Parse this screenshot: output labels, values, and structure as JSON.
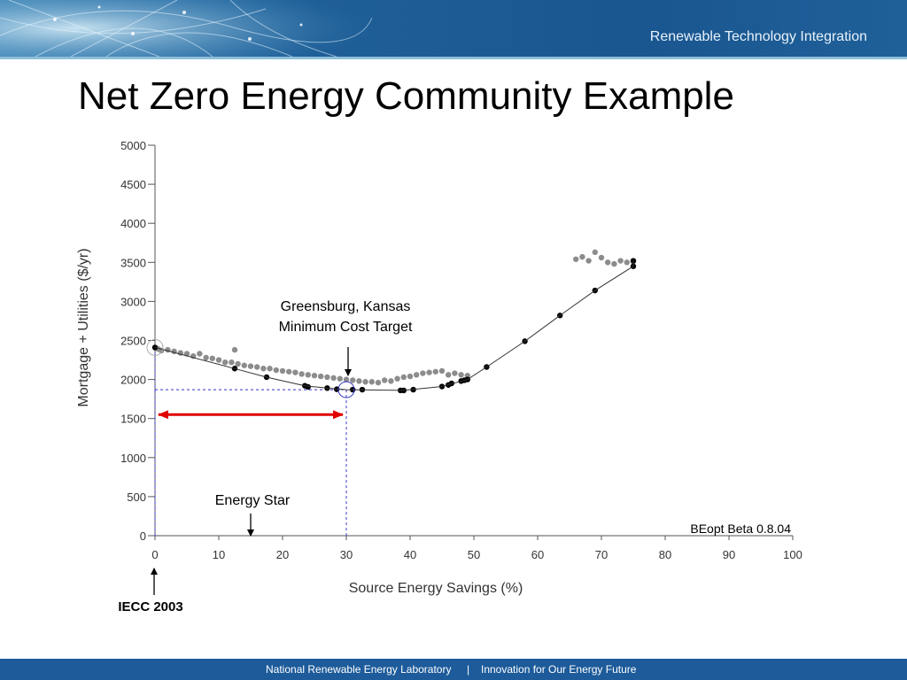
{
  "header": {
    "subtitle": "Renewable Technology Integration"
  },
  "slide": {
    "title": "Net Zero Energy Community Example"
  },
  "footer": {
    "org": "National Renewable Energy Laboratory",
    "separator": "|",
    "tagline": "Innovation for Our Energy Future"
  },
  "colors": {
    "banner": "#1a5690",
    "footer": "#1d5b9a",
    "series_gray": "#8c8c8c",
    "series_black": "#000000",
    "arrow": "#e00000",
    "guide": "#3333cc"
  },
  "chart_data": {
    "type": "scatter",
    "title": "",
    "xlabel": "Source Energy Savings (%)",
    "ylabel": "Mortgage + Utilities ($/yr)",
    "xlim": [
      0,
      100
    ],
    "ylim": [
      0,
      5000
    ],
    "x_ticks": [
      0,
      10,
      20,
      30,
      40,
      50,
      60,
      70,
      80,
      90,
      100
    ],
    "y_ticks": [
      0,
      500,
      1000,
      1500,
      2000,
      2500,
      3000,
      3500,
      4000,
      4500,
      5000
    ],
    "grid": false,
    "series": [
      {
        "color": "#8c8c8c",
        "points": [
          [
            0.5,
            2390
          ],
          [
            1,
            2370
          ],
          [
            2,
            2380
          ],
          [
            3,
            2360
          ],
          [
            4,
            2340
          ],
          [
            5,
            2330
          ],
          [
            6,
            2300
          ],
          [
            7,
            2330
          ],
          [
            8,
            2280
          ],
          [
            9,
            2270
          ],
          [
            10,
            2250
          ],
          [
            11,
            2220
          ],
          [
            12,
            2220
          ],
          [
            12.5,
            2380
          ],
          [
            13,
            2200
          ],
          [
            14,
            2180
          ],
          [
            15,
            2170
          ],
          [
            16,
            2160
          ],
          [
            17,
            2140
          ],
          [
            18,
            2140
          ],
          [
            19,
            2120
          ],
          [
            20,
            2110
          ],
          [
            21,
            2100
          ],
          [
            22,
            2090
          ],
          [
            23,
            2070
          ],
          [
            24,
            2060
          ],
          [
            25,
            2050
          ],
          [
            26,
            2040
          ],
          [
            27,
            2030
          ],
          [
            28,
            2020
          ],
          [
            29,
            2010
          ],
          [
            30,
            2000
          ],
          [
            31,
            1990
          ],
          [
            32,
            1980
          ],
          [
            33,
            1970
          ],
          [
            34,
            1970
          ],
          [
            35,
            1960
          ],
          [
            36,
            1990
          ],
          [
            37,
            1980
          ],
          [
            38,
            2010
          ],
          [
            39,
            2030
          ],
          [
            40,
            2040
          ],
          [
            41,
            2060
          ],
          [
            42,
            2080
          ],
          [
            43,
            2090
          ],
          [
            44,
            2100
          ],
          [
            45,
            2110
          ],
          [
            46,
            2060
          ],
          [
            47,
            2080
          ],
          [
            48,
            2060
          ],
          [
            49,
            2050
          ],
          [
            66,
            3540
          ],
          [
            67,
            3570
          ],
          [
            68,
            3520
          ],
          [
            69,
            3630
          ],
          [
            70,
            3560
          ],
          [
            71,
            3500
          ],
          [
            72,
            3480
          ],
          [
            73,
            3520
          ],
          [
            74,
            3500
          ],
          [
            75,
            3510
          ]
        ]
      },
      {
        "color": "#000000",
        "points": [
          [
            0,
            2410
          ],
          [
            12.5,
            2140
          ],
          [
            17.5,
            2030
          ],
          [
            23.5,
            1920
          ],
          [
            24,
            1905
          ],
          [
            27,
            1890
          ],
          [
            28.5,
            1875
          ],
          [
            31,
            1870
          ],
          [
            32.5,
            1870
          ],
          [
            38.5,
            1860
          ],
          [
            39,
            1860
          ],
          [
            40.5,
            1870
          ],
          [
            45,
            1910
          ],
          [
            46,
            1930
          ],
          [
            46.5,
            1950
          ],
          [
            48,
            1980
          ],
          [
            48.5,
            1990
          ],
          [
            49,
            2000
          ],
          [
            52,
            2160
          ],
          [
            58,
            2490
          ],
          [
            63.5,
            2820
          ],
          [
            69,
            3140
          ],
          [
            75,
            3450
          ],
          [
            75,
            3520
          ]
        ]
      }
    ],
    "curve": [
      [
        0,
        2410
      ],
      [
        12.5,
        2140
      ],
      [
        17.5,
        2030
      ],
      [
        23.5,
        1920
      ],
      [
        27,
        1890
      ],
      [
        30,
        1870
      ],
      [
        39,
        1860
      ],
      [
        45,
        1910
      ],
      [
        49,
        2000
      ],
      [
        52,
        2160
      ],
      [
        58,
        2490
      ],
      [
        63.5,
        2820
      ],
      [
        69,
        3140
      ],
      [
        75,
        3450
      ],
      [
        75,
        3520
      ]
    ],
    "annotations": {
      "greensburg_line1": "Greensburg, Kansas",
      "greensburg_line2": "Minimum Cost Target",
      "energy_star": "Energy Star",
      "beopt": "BEopt Beta 0.8.04",
      "iecc": "IECC 2003"
    },
    "markers": {
      "min_cost": [
        30,
        1870
      ],
      "iecc_baseline": [
        0,
        2410
      ],
      "energy_star_x": 15,
      "arrow_range_x": [
        0,
        30
      ],
      "arrow_y": 1550
    }
  }
}
